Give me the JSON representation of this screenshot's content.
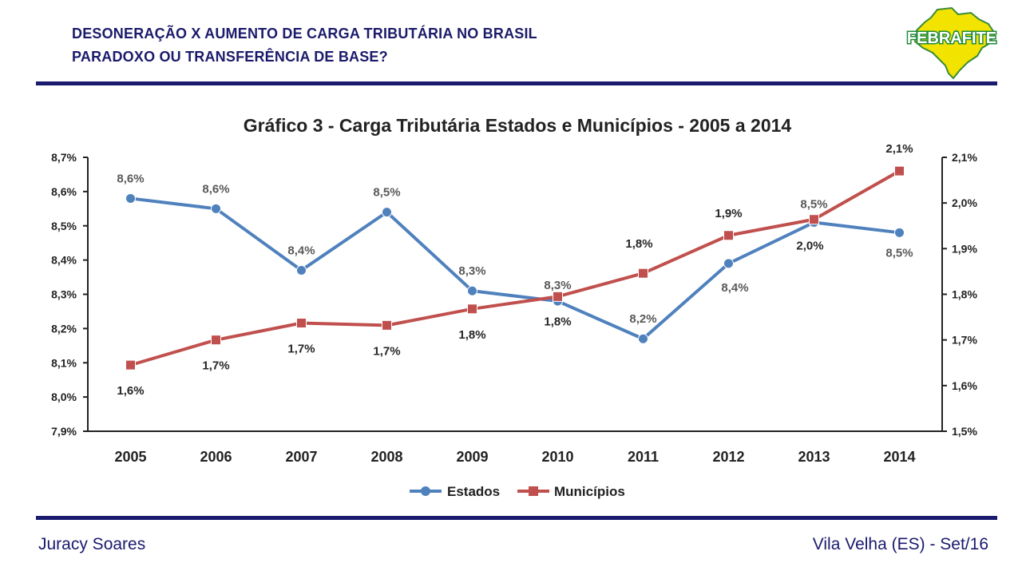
{
  "header": {
    "line1": "DESONERAÇÃO X AUMENTO DE CARGA TRIBUTÁRIA NO BRASIL",
    "line2": "PARADOXO OU TRANSFERÊNCIA DE BASE?"
  },
  "logo": {
    "text": "FEBRAFITE",
    "fill": "#f2e300",
    "text_color": "#1f8a3a"
  },
  "footer": {
    "left": "Juracy Soares",
    "right": "Vila Velha (ES) - Set/16"
  },
  "colors": {
    "navy": "#1a1a6e",
    "estados": "#4f81bd",
    "municipios": "#c0504d"
  },
  "chart_data": {
    "type": "line",
    "title": "Gráfico 3 - Carga Tributária Estados e Municípios - 2005 a 2014",
    "categories": [
      "2005",
      "2006",
      "2007",
      "2008",
      "2009",
      "2010",
      "2011",
      "2012",
      "2013",
      "2014"
    ],
    "y_left": {
      "min": 7.9,
      "max": 8.7,
      "ticks": [
        "8,7%",
        "8,6%",
        "8,5%",
        "8,4%",
        "8,3%",
        "8,2%",
        "8,1%",
        "8,0%",
        "7,9%"
      ]
    },
    "y_right": {
      "min": 1.5,
      "max": 2.1,
      "ticks": [
        "2,1%",
        "2,0%",
        "1,9%",
        "1,8%",
        "1,7%",
        "1,6%",
        "1,5%"
      ]
    },
    "legend_position": "bottom",
    "series": [
      {
        "name": "Estados",
        "axis": "left",
        "color": "#4f81bd",
        "marker": "circle",
        "values": [
          8.58,
          8.55,
          8.37,
          8.54,
          8.31,
          8.28,
          8.17,
          8.39,
          8.51,
          8.48
        ],
        "labels": [
          "8,6%",
          "8,6%",
          "8,4%",
          "8,5%",
          "8,3%",
          "8,3%",
          "8,2%",
          "8,4%",
          "8,5%",
          "8,5%"
        ]
      },
      {
        "name": "Municípios",
        "axis": "right",
        "color": "#c0504d",
        "marker": "square",
        "values": [
          1.645,
          1.7,
          1.737,
          1.732,
          1.768,
          1.795,
          1.846,
          1.929,
          1.964,
          2.07
        ],
        "labels": [
          "1,6%",
          "1,7%",
          "1,7%",
          "1,7%",
          "1,8%",
          "1,8%",
          "1,8%",
          "1,9%",
          "2,0%",
          "2,1%"
        ]
      }
    ]
  }
}
